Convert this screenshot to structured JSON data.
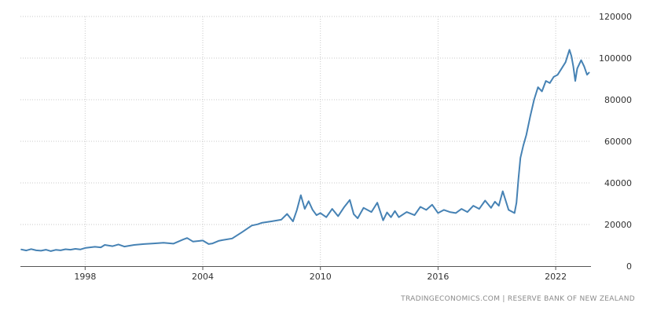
{
  "chart_data": {
    "type": "line",
    "title": "",
    "xlabel": "",
    "ylabel": "",
    "x_ticks": [
      "1998",
      "2004",
      "2010",
      "2016",
      "2022"
    ],
    "x_tick_years": [
      1998,
      2004,
      2010,
      2016,
      2022
    ],
    "y_ticks": [
      "0",
      "20000",
      "40000",
      "60000",
      "80000",
      "100000",
      "120000"
    ],
    "y_tick_values": [
      0,
      20000,
      40000,
      60000,
      80000,
      100000,
      120000
    ],
    "ylim": [
      0,
      120000
    ],
    "xlim": [
      1994.7,
      2023.8
    ],
    "y_axis_side": "right",
    "grid": {
      "vertical": true,
      "horizontal": true,
      "style": "dotted"
    },
    "legend": "none",
    "line_color": "#4682b4",
    "series": [
      {
        "x": [
          1994.75,
          1995.0,
          1995.25,
          1995.5,
          1995.75,
          1996.0,
          1996.25,
          1996.5,
          1996.75,
          1997.0,
          1997.25,
          1997.5,
          1997.75,
          1998.0,
          1998.5,
          1998.8,
          1999.0,
          1999.4,
          1999.7,
          2000.0,
          2000.5,
          2001.0,
          2001.5,
          2002.0,
          2002.5,
          2003.0,
          2003.2,
          2003.5,
          2004.0,
          2004.3,
          2004.5,
          2004.8,
          2005.0,
          2005.5,
          2006.0,
          2006.5,
          2006.8,
          2007.0,
          2007.5,
          2008.0,
          2008.3,
          2008.6,
          2008.8,
          2009.0,
          2009.2,
          2009.4,
          2009.6,
          2009.8,
          2010.0,
          2010.3,
          2010.6,
          2010.9,
          2011.2,
          2011.5,
          2011.7,
          2011.9,
          2012.2,
          2012.6,
          2012.9,
          2013.2,
          2013.4,
          2013.6,
          2013.8,
          2014.0,
          2014.4,
          2014.8,
          2015.1,
          2015.4,
          2015.7,
          2016.0,
          2016.3,
          2016.6,
          2016.9,
          2017.2,
          2017.5,
          2017.8,
          2018.1,
          2018.4,
          2018.7,
          2018.9,
          2019.1,
          2019.3,
          2019.6,
          2019.9,
          2020.0,
          2020.1,
          2020.2,
          2020.35,
          2020.5,
          2020.7,
          2020.9,
          2021.1,
          2021.3,
          2021.5,
          2021.7,
          2021.9,
          2022.1,
          2022.3,
          2022.5,
          2022.7,
          2022.8,
          2022.9,
          2023.0,
          2023.1,
          2023.2,
          2023.3,
          2023.45,
          2023.6,
          2023.7
        ],
        "values": [
          8000,
          7500,
          8200,
          7600,
          7400,
          7900,
          7200,
          7800,
          7600,
          8100,
          7900,
          8300,
          8000,
          8700,
          9300,
          9000,
          10200,
          9600,
          10400,
          9400,
          10200,
          10600,
          10900,
          11200,
          10800,
          12800,
          13500,
          11800,
          12300,
          10600,
          10900,
          12100,
          12500,
          13300,
          16300,
          19500,
          20100,
          20800,
          21500,
          22300,
          25100,
          21500,
          27000,
          34100,
          27500,
          31200,
          27100,
          24500,
          25500,
          23500,
          27500,
          24000,
          28200,
          31800,
          25000,
          23000,
          28000,
          26000,
          30500,
          22000,
          25800,
          23500,
          26500,
          23500,
          26000,
          24500,
          28500,
          27000,
          29500,
          25500,
          27000,
          26000,
          25500,
          27500,
          26000,
          29000,
          27500,
          31500,
          28000,
          31000,
          29000,
          36000,
          27000,
          25500,
          30500,
          42000,
          52000,
          58000,
          63000,
          72000,
          80000,
          86000,
          84000,
          89000,
          88000,
          91000,
          92000,
          95000,
          98000,
          104000,
          101000,
          96000,
          89000,
          95000,
          97000,
          99000,
          96000,
          92000,
          93000
        ]
      }
    ]
  },
  "source_text": "TRADINGECONOMICS.COM  |  RESERVE BANK OF NEW ZEALAND"
}
